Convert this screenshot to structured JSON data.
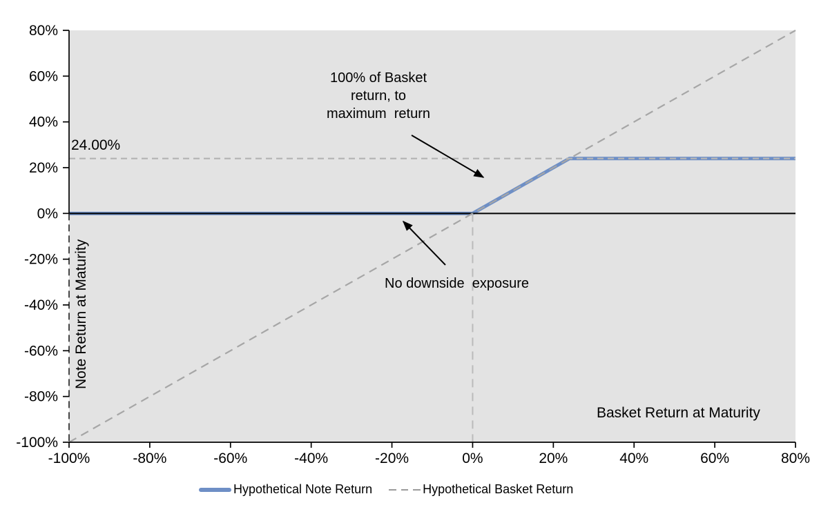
{
  "chart_data": {
    "type": "line",
    "title": "",
    "xlabel": "Basket Return at Maturity",
    "ylabel": "Note Return at Maturity",
    "xlim": [
      -100,
      80
    ],
    "ylim": [
      -100,
      80
    ],
    "grid": false,
    "plot_background": "#E3E3E3",
    "axis_color": "#000000",
    "x_tick_values": [
      -100,
      -80,
      -60,
      -40,
      -20,
      0,
      20,
      40,
      60,
      80
    ],
    "x_tick_labels": [
      "-100%",
      "-80%",
      "-60%",
      "-40%",
      "-20%",
      "0%",
      "20%",
      "40%",
      "60%",
      "80%"
    ],
    "y_tick_values": [
      -100,
      -80,
      -60,
      -40,
      -20,
      0,
      20,
      40,
      60,
      80
    ],
    "y_tick_labels": [
      "-100%",
      "-80%",
      "-60%",
      "-40%",
      "-20%",
      "0%",
      "20%",
      "40%",
      "60%",
      "80%"
    ],
    "series": [
      {
        "name": "Hypothetical Note Return",
        "style": "solid",
        "color": "#6E8FC6",
        "width": 5,
        "points": [
          [
            -100,
            0
          ],
          [
            0,
            0
          ],
          [
            24,
            24
          ],
          [
            80,
            24
          ]
        ]
      },
      {
        "name": "Hypothetical Basket Return",
        "style": "dashed",
        "color": "#A6A6A6",
        "width": 2.2,
        "points": [
          [
            -100,
            -100
          ],
          [
            80,
            80
          ]
        ]
      }
    ],
    "reference_lines": [
      {
        "name": "maximum-return-line",
        "orientation": "horizontal",
        "y": 24,
        "style": "dashed",
        "color": "#B5B5B5"
      },
      {
        "name": "zero-return-line",
        "orientation": "horizontal",
        "y": 0,
        "style": "solid",
        "color": "#000000"
      },
      {
        "name": "zero-basket-drop-line",
        "orientation": "vertical",
        "x": 0,
        "y_from": 0,
        "y_to": -100,
        "style": "dashed",
        "color": "#BBBBBB"
      },
      {
        "name": "left-edge-drop-line",
        "orientation": "vertical",
        "x": -100,
        "y_from": 0,
        "y_to": -100,
        "style": "dashed",
        "color": "#333333"
      }
    ],
    "annotations": {
      "max_label": "24.00%",
      "cap_note": "100% of Basket\nreturn, to\nmaximum  return",
      "downside_note": "No downside  exposure",
      "x_area_label": "Basket Return at Maturity",
      "y_axis_label": "Note Return at Maturity"
    },
    "legend": {
      "position": "bottom",
      "entries": [
        {
          "label": "Hypothetical Note Return",
          "swatch": "solid-line",
          "color": "#6E8FC6"
        },
        {
          "label": "Hypothetical Basket Return",
          "swatch": "dashed-line",
          "color": "#9B9B9B"
        }
      ]
    }
  }
}
